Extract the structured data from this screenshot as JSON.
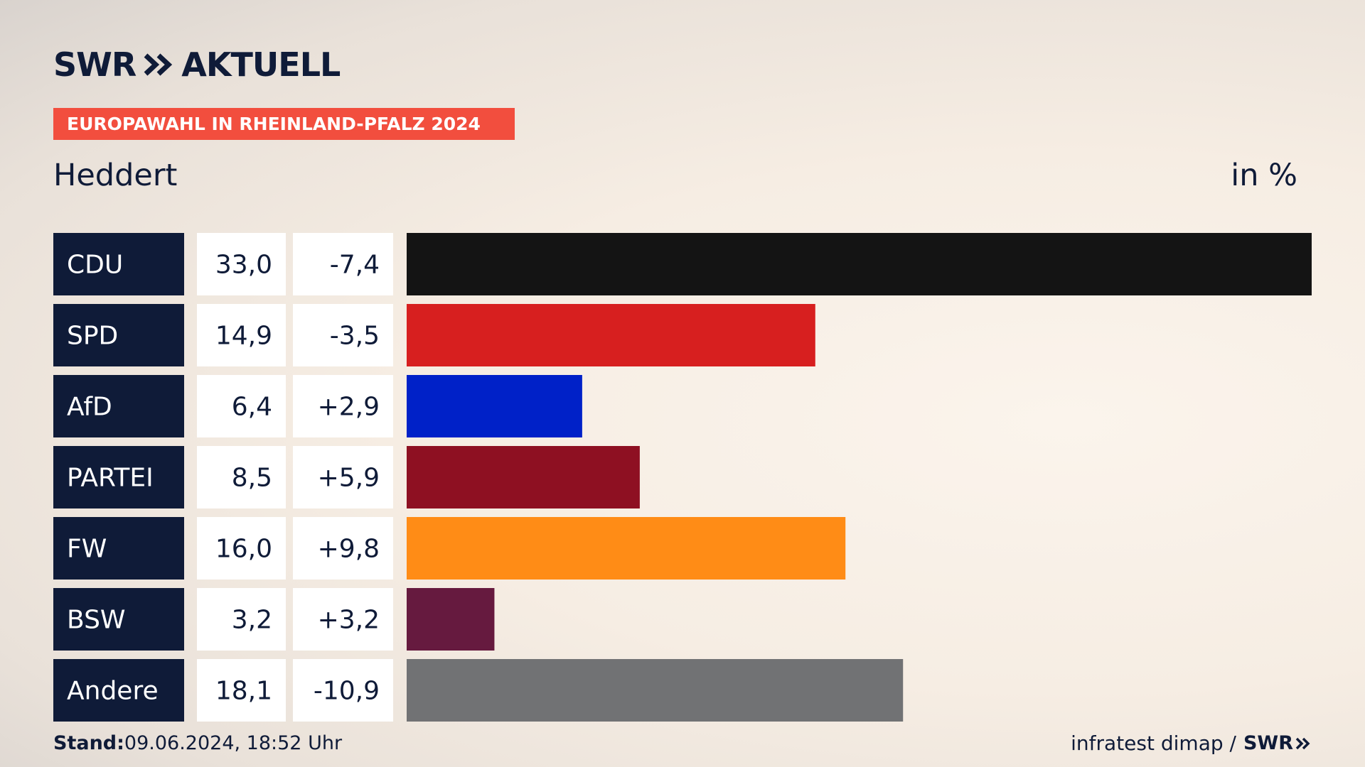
{
  "header": {
    "logo_swr": "SWR",
    "logo_aktuell": "AKTUELL",
    "banner": "EUROPAWAHL IN RHEINLAND-PFALZ 2024",
    "region": "Heddert",
    "unit": "in %"
  },
  "footer": {
    "stand_label": "Stand:",
    "stand_value": "09.06.2024, 18:52 Uhr",
    "source": "infratest dimap /",
    "source_logo": "SWR"
  },
  "colors": {
    "label_bg": "#0f1b38",
    "value_bg": "#ffffff",
    "banner": "#f24e3e"
  },
  "chart_data": {
    "type": "bar",
    "orientation": "horizontal",
    "categories": [
      "CDU",
      "SPD",
      "AfD",
      "PARTEI",
      "FW",
      "BSW",
      "Andere"
    ],
    "values": [
      33.0,
      14.9,
      6.4,
      8.5,
      16.0,
      3.2,
      18.1
    ],
    "value_labels": [
      "33,0",
      "14,9",
      "6,4",
      "8,5",
      "16,0",
      "3,2",
      "18,1"
    ],
    "change_labels": [
      "-7,4",
      "-3,5",
      "+2,9",
      "+5,9",
      "+9,8",
      "+3,2",
      "-10,9"
    ],
    "changes": [
      -7.4,
      -3.5,
      2.9,
      5.9,
      9.8,
      3.2,
      -10.9
    ],
    "bar_colors": [
      "#141414",
      "#d71f1f",
      "#0021c8",
      "#8e1022",
      "#ff8c16",
      "#661a3f",
      "#717274"
    ],
    "xlim": [
      0,
      33.0
    ],
    "grid": false,
    "legend": "none"
  }
}
